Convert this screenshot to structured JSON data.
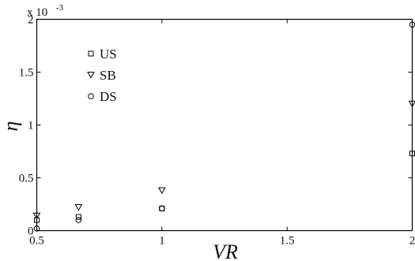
{
  "chart_data": {
    "type": "scatter",
    "title": "",
    "xlabel": "VR",
    "ylabel": "η",
    "y_multiplier_label": "x 10",
    "y_multiplier_exponent": "-3",
    "xlim": [
      0.5,
      2
    ],
    "ylim": [
      0,
      2
    ],
    "x_ticks": [
      0.5,
      1,
      1.5,
      2
    ],
    "x_tick_labels": [
      "0.5",
      "1",
      "1.5",
      "2"
    ],
    "y_ticks": [
      0,
      0.5,
      1,
      1.5,
      2
    ],
    "y_tick_labels": [
      "0",
      "0.5",
      "1",
      "1.5",
      "2"
    ],
    "grid": false,
    "legend_position": "top-left",
    "series": [
      {
        "name": "US",
        "marker": "square",
        "x": [
          0.5,
          0.667,
          1,
          2
        ],
        "y": [
          0.1,
          0.13,
          0.21,
          0.73
        ]
      },
      {
        "name": "SB",
        "marker": "triangle-down",
        "x": [
          0.5,
          0.667,
          1,
          2
        ],
        "y": [
          0.14,
          0.22,
          0.38,
          1.2
        ]
      },
      {
        "name": "DS",
        "marker": "circle",
        "x": [
          0.5,
          0.667,
          1,
          2
        ],
        "y": [
          0.02,
          0.1,
          0.21,
          1.95
        ]
      }
    ]
  }
}
